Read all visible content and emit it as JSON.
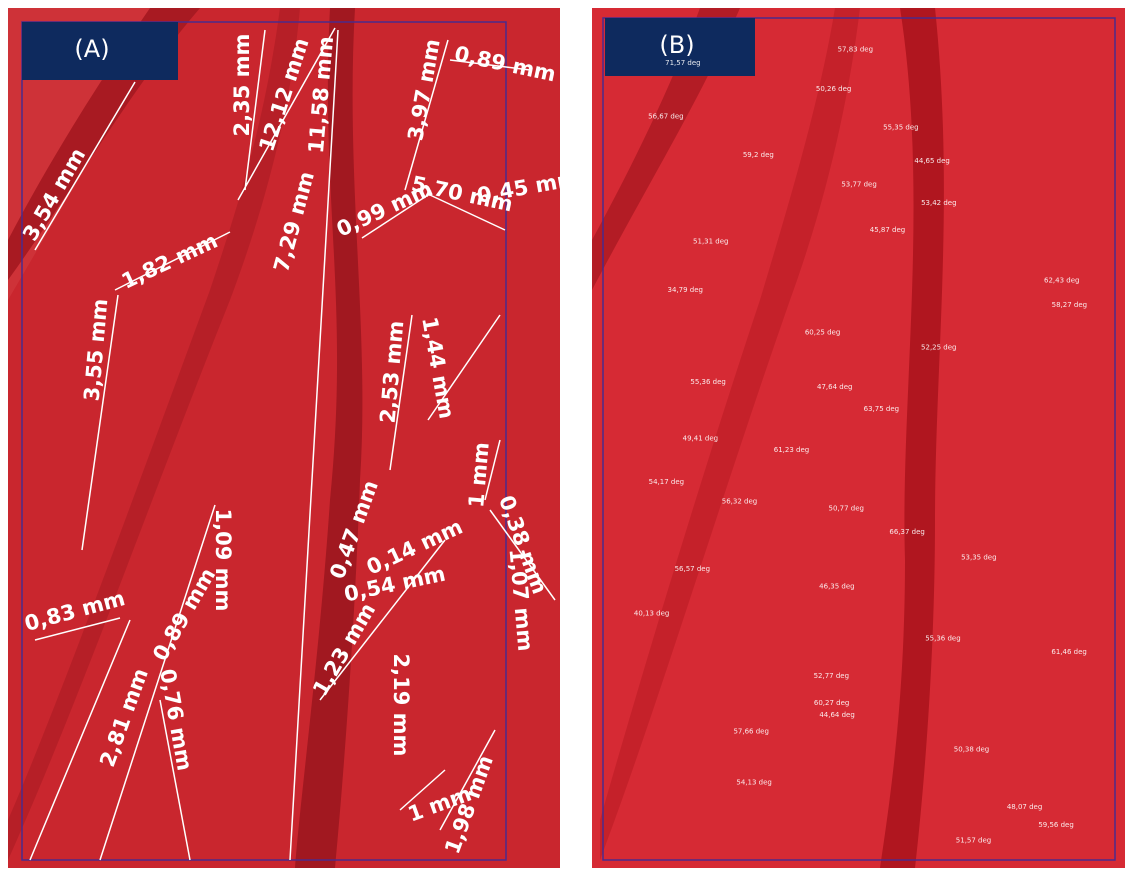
{
  "panels": [
    {
      "label": "(A)",
      "annotations": [
        "3,54 mm",
        "2,35 mm",
        "12,12 mm",
        "11,58 mm",
        "3,97 mm",
        "0,89 mm",
        "1,82 mm",
        "7,29 mm",
        "0,99 mm",
        "5,70 mm",
        "0,45 mm",
        "3,55 mm",
        "1,44 mm",
        "2,53 mm",
        "1 mm",
        "0,38 mm",
        "1,09 mm",
        "1,07 mm",
        "0,47 mm",
        "0,14 mm",
        "0,54 mm",
        "0,83 mm",
        "0,89 mm",
        "1,23 mm",
        "2,19 mm",
        "2,81 mm",
        "0,76 mm",
        "1 mm",
        "1,98 mm"
      ]
    },
    {
      "label": "(B)",
      "annotations": [
        "57,83 deg",
        "71,57 deg",
        "50,26 deg",
        "56,67 deg",
        "55,35 deg",
        "59,2 deg",
        "44,65 deg",
        "53,77 deg",
        "53,42 deg",
        "45,87 deg",
        "51,31 deg",
        "62,43 deg",
        "34,79 deg",
        "58,27 deg",
        "60,25 deg",
        "52,25 deg",
        "55,36 deg",
        "47,64 deg",
        "63,75 deg",
        "49,41 deg",
        "61,23 deg",
        "54,17 deg",
        "56,32 deg",
        "50,77 deg",
        "66,37 deg",
        "53,35 deg",
        "56,57 deg",
        "46,35 deg",
        "40,13 deg",
        "55,36 deg",
        "61,46 deg",
        "52,77 deg",
        "60,27 deg",
        "44,64 deg",
        "57,66 deg",
        "50,38 deg",
        "54,13 deg",
        "48,07 deg",
        "59,56 deg",
        "51,57 deg"
      ]
    }
  ]
}
